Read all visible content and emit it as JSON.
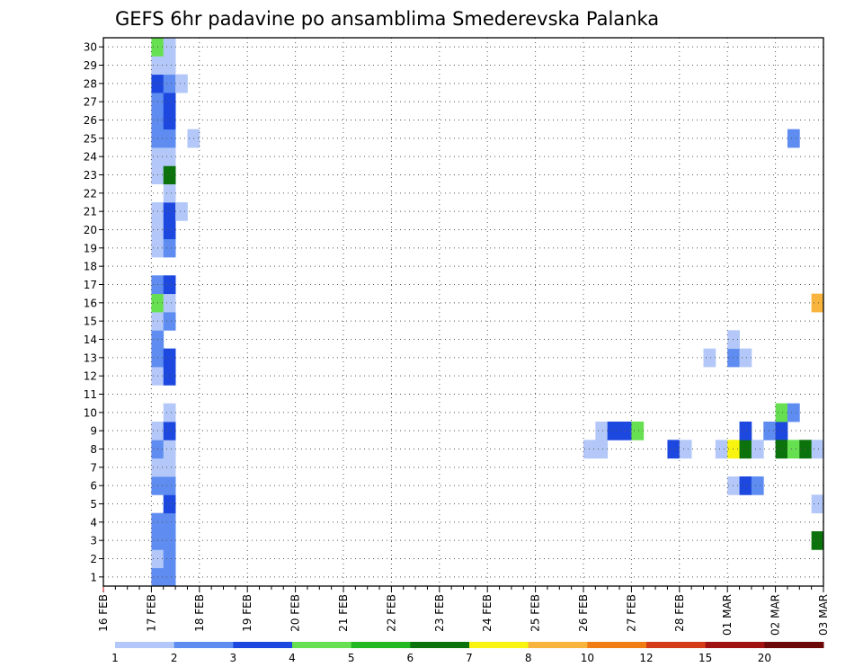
{
  "chart_data": {
    "type": "heatmap",
    "title": "GEFS 6hr padavine po ansamblima Smederevska Palanka",
    "xlabel": "",
    "ylabel": "",
    "x_tick_labels": [
      "16 FEB",
      "17 FEB",
      "18 FEB",
      "19 FEB",
      "20 FEB",
      "21 FEB",
      "22 FEB",
      "23 FEB",
      "24 FEB",
      "25 FEB",
      "26 FEB",
      "27 FEB",
      "28 FEB",
      "01 MAR",
      "02 MAR",
      "03 MAR"
    ],
    "y_tick_labels": [
      "1",
      "2",
      "3",
      "4",
      "5",
      "6",
      "7",
      "8",
      "9",
      "10",
      "11",
      "12",
      "13",
      "14",
      "15",
      "16",
      "17",
      "18",
      "19",
      "20",
      "21",
      "22",
      "23",
      "24",
      "25",
      "26",
      "27",
      "28",
      "29",
      "30"
    ],
    "x_steps_per_day": 4,
    "x_range_steps": [
      0,
      60
    ],
    "y_range": [
      0.5,
      30.5
    ],
    "grid": true,
    "colorbar": {
      "placement": "bottom",
      "bounds": [
        1,
        2,
        3,
        4,
        5,
        6,
        7,
        8,
        10,
        12,
        15,
        20
      ],
      "labels": [
        "1",
        "2",
        "3",
        "4",
        "5",
        "6",
        "7",
        "8",
        "10",
        "12",
        "15",
        "20"
      ],
      "colors": [
        "#b3c8f8",
        "#5e8cf0",
        "#1c48e0",
        "#66e050",
        "#22b822",
        "#0c720c",
        "#f8f410",
        "#f8b43c",
        "#f07c14",
        "#d43c18",
        "#a01212",
        "#6c0808"
      ]
    },
    "cells": [
      [
        4,
        1,
        1
      ],
      [
        5,
        1,
        1
      ],
      [
        4,
        2,
        0
      ],
      [
        5,
        2,
        1
      ],
      [
        4,
        3,
        1
      ],
      [
        5,
        3,
        1
      ],
      [
        4,
        4,
        1
      ],
      [
        5,
        4,
        1
      ],
      [
        5,
        5,
        2
      ],
      [
        4,
        6,
        1
      ],
      [
        5,
        6,
        1
      ],
      [
        4,
        7,
        0
      ],
      [
        5,
        7,
        0
      ],
      [
        4,
        8,
        1
      ],
      [
        5,
        8,
        0
      ],
      [
        4,
        9,
        0
      ],
      [
        5,
        9,
        2
      ],
      [
        5,
        10,
        0
      ],
      [
        4,
        12,
        0
      ],
      [
        5,
        12,
        2
      ],
      [
        4,
        13,
        1
      ],
      [
        5,
        13,
        2
      ],
      [
        4,
        14,
        1
      ],
      [
        4,
        15,
        0
      ],
      [
        5,
        15,
        1
      ],
      [
        4,
        16,
        3
      ],
      [
        5,
        16,
        0
      ],
      [
        4,
        17,
        1
      ],
      [
        5,
        17,
        2
      ],
      [
        4,
        19,
        0
      ],
      [
        5,
        19,
        1
      ],
      [
        4,
        20,
        0
      ],
      [
        5,
        20,
        2
      ],
      [
        4,
        21,
        0
      ],
      [
        5,
        21,
        2
      ],
      [
        6,
        21,
        0
      ],
      [
        5,
        22,
        0
      ],
      [
        4,
        23,
        0
      ],
      [
        5,
        23,
        5
      ],
      [
        4,
        24,
        0
      ],
      [
        5,
        24,
        0
      ],
      [
        4,
        25,
        1
      ],
      [
        5,
        25,
        1
      ],
      [
        7,
        25,
        0
      ],
      [
        4,
        26,
        1
      ],
      [
        5,
        26,
        2
      ],
      [
        4,
        27,
        1
      ],
      [
        5,
        27,
        2
      ],
      [
        4,
        28,
        2
      ],
      [
        5,
        28,
        1
      ],
      [
        6,
        28,
        0
      ],
      [
        4,
        29,
        0
      ],
      [
        5,
        29,
        0
      ],
      [
        4,
        30,
        3
      ],
      [
        5,
        30,
        0
      ],
      [
        40,
        8,
        0
      ],
      [
        41,
        8,
        0
      ],
      [
        41,
        9,
        0
      ],
      [
        42,
        9,
        2
      ],
      [
        43,
        9,
        2
      ],
      [
        44,
        9,
        3
      ],
      [
        47,
        8,
        2
      ],
      [
        48,
        8,
        0
      ],
      [
        50,
        13,
        0
      ],
      [
        52,
        13,
        1
      ],
      [
        53,
        13,
        0
      ],
      [
        52,
        14,
        0
      ],
      [
        51,
        8,
        0
      ],
      [
        52,
        8,
        6
      ],
      [
        53,
        8,
        5
      ],
      [
        54,
        8,
        0
      ],
      [
        53,
        9,
        2
      ],
      [
        52,
        6,
        0
      ],
      [
        53,
        6,
        2
      ],
      [
        54,
        6,
        1
      ],
      [
        55,
        9,
        1
      ],
      [
        56,
        9,
        2
      ],
      [
        56,
        10,
        3
      ],
      [
        57,
        10,
        1
      ],
      [
        56,
        8,
        5
      ],
      [
        57,
        8,
        3
      ],
      [
        58,
        8,
        5
      ],
      [
        59,
        8,
        0
      ],
      [
        57,
        25,
        1
      ],
      [
        59,
        5,
        0
      ],
      [
        59,
        16,
        7
      ],
      [
        59,
        3,
        5
      ]
    ]
  }
}
